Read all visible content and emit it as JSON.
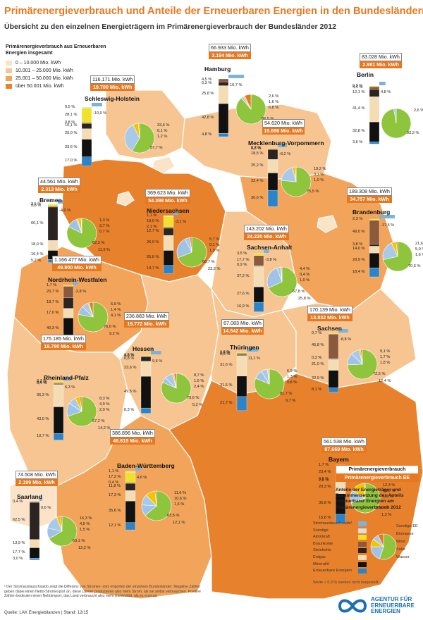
{
  "title": "Primärenergieverbrauch und Anteile der Erneuerbaren Energien in den Bundesländern",
  "subtitle": "Übersicht zu den einzelnen Energieträgern im Primärenergieverbrauch der Bundesländer 2012",
  "legend": {
    "title": "Primärenergieverbrauch aus Erneuerbaren Energien insgesamt",
    "classes": [
      {
        "label": "0 – 10.000 Mio. kWh",
        "color": "#fbe3c8"
      },
      {
        "label": "10.001 – 25.000 Mio. kWh",
        "color": "#f6c591"
      },
      {
        "label": "25.001 – 50.000 Mio. kWh",
        "color": "#f2a45a"
      },
      {
        "label": "über 50.001 Mio. kWh",
        "color": "#e8812c"
      }
    ]
  },
  "colors": {
    "stromaustausch": "#7ab3db",
    "sonstige": "#dedede",
    "atomkraft": "#f0e22c",
    "braunkohle": "#8b5a3c",
    "steinkohle": "#2b2420",
    "erdgas": "#f4dcb5",
    "mineraloel": "#111111",
    "ee": "#2a84c9",
    "pie_main": "#8fc43d",
    "pie_blue": "#a9c9e8",
    "pie_wind": "#9fc3e6",
    "pie_yellow": "#f5c400",
    "pie_orange": "#e8781f"
  },
  "states": [
    {
      "id": "sh",
      "name": "Schleswig-Holstein",
      "total": "116.171 Mio. kWh",
      "ee": "19.700 Mio. kWh",
      "left": [
        "0,5 %",
        "28,1 %",
        "0,8 %",
        "10,1 %",
        "20,0 %",
        "33,6 %",
        "17,0 %"
      ],
      "stromaus": "-10,0 %",
      "right": [
        "33,6 %",
        "6,1 %",
        "1,2 %"
      ],
      "main": "57,7 %"
    },
    {
      "id": "hh",
      "name": "Hamburg",
      "total": "66.933 Mio. kWh",
      "ee": "3.194 Mio. kWh",
      "left": [
        "4,5 %",
        "5,3 %",
        "25,8 %",
        "42,8 %",
        "4,8 %"
      ],
      "stromaus": "16,7 %",
      "right": [
        "2,6 %",
        "1,6 %",
        "6,8 %"
      ],
      "main": "86,5 %"
    },
    {
      "id": "be",
      "name": "Berlin",
      "total": "83.028 Mio. kWh",
      "ee": "2.981 Mio. kWh",
      "left": [
        "0,9 %",
        "4,4 %",
        "12,1 %",
        "41,4 %",
        "32,8 %",
        "3,6 %"
      ],
      "stromaus": "4,8 %",
      "right": [
        "2,6 %"
      ],
      "main": "93,2 %"
    },
    {
      "id": "mv",
      "name": "Mecklenburg-Vorpommern",
      "total": "54.620 Mio. kWh",
      "ee": "16.696 Mio. kWh",
      "left": [
        "0,7 %",
        "0,8 %",
        "18,5 %",
        "25,2 %",
        "32,4 %",
        "30,6 %"
      ],
      "stromaus": "-8,2 %",
      "right": [
        "19,2 %",
        "3,1 %",
        "1,0 %"
      ],
      "main": "75,5 %"
    },
    {
      "id": "hb",
      "name": "Bremen",
      "total": "44.561 Mio. kWh",
      "ee": "2.313 Mio. kWh",
      "left": [
        "3,5 %",
        "0,8 %",
        "60,1 %",
        "18,0 %",
        "16,4 %",
        "5,2 %"
      ],
      "stromaus": "-4,0 %",
      "right": [
        "1,3 %",
        "3,7 %",
        "0,7 %"
      ],
      "main": "82,3 %",
      "extra": "11,9 %"
    },
    {
      "id": "ni",
      "name": "Niedersachsen",
      "total": "369.623 Mio. kWh",
      "ee": "54.398 Mio. kWh",
      "left": [
        "1,1 %",
        "19,0 %",
        "2,1 %",
        "12,7 %",
        "26,9 %",
        "26,6 %",
        "14,7 %"
      ],
      "stromaus": "-3,1 %",
      "right": [
        "5,7 %",
        "0,1 %",
        "1,9 %"
      ],
      "main": "68,7 %",
      "extra": "23,2 %"
    },
    {
      "id": "bb",
      "name": "Brandenburg",
      "total": "189.308 Mio. kWh",
      "ee": "34.757 Mio. kWh",
      "left": [
        "2,3 %",
        "49,0 %",
        "3,8 %",
        "14,0 %",
        "29,9 %",
        "18,4 %"
      ],
      "stromaus": "-17,5 %",
      "right": [
        "21,6 %",
        "5,0 %",
        "1,6 %"
      ],
      "main": "70,6 %"
    },
    {
      "id": "st",
      "name": "Sachsen-Anhalt",
      "total": "143.202 Mio. kWh",
      "ee": "24.220 Mio. kWh",
      "left": [
        "3,5 %",
        "17,7 %",
        "0,9 %",
        "37,2 %",
        "27,6 %",
        "16,9 %"
      ],
      "stromaus": "-3,8 %",
      "right": [
        "4,4 %",
        "0,4 %",
        "1,0 %"
      ],
      "main": "67,8 %",
      "extra": "25,8 %"
    },
    {
      "id": "nw",
      "name": "Nordrhein-Westfalen",
      "total": "1.166.477 Mio. kWh",
      "ee": "49.800 Mio. kWh",
      "left": [
        "1,7 %",
        "20,7 %",
        "18,7 %",
        "17,0 %",
        "40,3 %",
        "4,3 %"
      ],
      "stromaus": "-2,8 %",
      "right": [
        "6,9 %",
        "1,4 %",
        "4,1 %"
      ],
      "main": "76,0 %",
      "extra": "9,2 %"
    },
    {
      "id": "sn",
      "name": "Sachsen",
      "total": "170.139 Mio. kWh",
      "ee": "13.832 Mio. kWh",
      "left": [
        "0,7 %",
        "45,8 %",
        "0,3 %",
        "21,0 %",
        "32,9 %",
        "8,1 %"
      ],
      "stromaus": "-8,8 %",
      "right": [
        "9,1 %",
        "1,7 %",
        "1,8 %"
      ],
      "main": "72,5 %",
      "extra": "12,4 %"
    },
    {
      "id": "he",
      "name": "Hessen",
      "total": "236.883 Mio. kWh",
      "ee": "19.772 Mio. kWh",
      "left": [
        "1,5 %",
        "0,6 %",
        "6,8 %",
        "23,6 %",
        "49,5 %",
        "8,3 %"
      ],
      "stromaus": "9,6 %",
      "right": [
        "8,7 %",
        "1,6 %",
        "2,4 %"
      ],
      "main": "79,6 %",
      "extra": "5,2 %"
    },
    {
      "id": "th",
      "name": "Thüringen",
      "total": "67.083 Mio. kWh",
      "ee": "14.542 Mio. kWh",
      "left": [
        "1,6 %",
        "2,2 %",
        "0,3 %",
        "31,6 %",
        "31,5 %",
        "21,7 %"
      ],
      "stromaus": "11,1 %",
      "right": [
        "6,9 %",
        "1,3 %",
        "0,8 %"
      ],
      "main": "81,7 %",
      "extra": "9,7 %"
    },
    {
      "id": "rp",
      "name": "Rheinland-Pfalz",
      "total": "175.185 Mio. kWh",
      "ee": "18.780 Mio. kWh",
      "left": [
        "2,7 %",
        "0,6 %",
        "0,4 %",
        "36,3 %",
        "43,0 %",
        "10,7 %"
      ],
      "stromaus": "6,3 %",
      "right": [
        "8,3 %",
        "4,9 %",
        "2,0 %"
      ],
      "main": "67,2 %",
      "extra": "14,2 %"
    },
    {
      "id": "bw",
      "name": "Baden-Württemberg",
      "total": "386.896 Mio. kWh",
      "ee": "46.815 Mio. kWh",
      "left": [
        "1,1 %",
        "17,2 %",
        "0,4 %",
        "11,8 %",
        "17,3 %",
        "35,6 %",
        "12,1 %"
      ],
      "stromaus": "4,6 %",
      "right": [
        "11,6 %",
        "10,6 %",
        "1,6 %"
      ],
      "main": "63,5 %",
      "extra": "12,1 %"
    },
    {
      "id": "by",
      "name": "Bayern",
      "total": "561.538 Mio. kWh",
      "ee": "87.669 Mio. kWh",
      "left": [
        "1,7 %",
        "23,4 %",
        "0,5 %",
        "2,8 %",
        "20,3 %",
        "35,8 %",
        "15,6 %"
      ],
      "stromaus": "",
      "right": [
        "12,3 %",
        "15,0 %",
        "1,1 %"
      ],
      "main": "67,8 %",
      "extra": "1,3 %"
    },
    {
      "id": "sl",
      "name": "Saarland",
      "total": "74.508 Mio. kWh",
      "ee": "2.199 Mio. kWh",
      "left": [
        "0,4 %",
        "62,5 %",
        "13,9 %",
        "17,7 %",
        "3,0 %"
      ],
      "stromaus": "0,6 %",
      "right": [
        "16,3 %",
        "4,5 %",
        "1,5 %"
      ],
      "main": "69,1 %",
      "extra": "12,2 %"
    }
  ],
  "info": {
    "box1": "Primärenergieverbrauch",
    "box2": "Primärenergieverbrauch EE",
    "desc": "Anteile der Energieträger und Zusammensetzung des Anteils Erneuerbarer Energien am Primärenergieverbrauch 2012"
  },
  "key": {
    "left": [
      "Stromaustauschsaldo¹",
      "Sonstige",
      "Atomkraft",
      "Braunkohle",
      "Steinkohle",
      "Erdgas",
      "Mineralöl",
      "Erneuerbare Energien"
    ],
    "right": [
      "Sonstige EE",
      "Biomasse",
      "Wind",
      "Solar",
      "Wasser"
    ]
  },
  "footnote": "¹ Der Stromaustauschsaldo zeigt die Differenz von Stromex- und -importen der einzelnen Bundesländer: Negative Zahlen geben dabei einen Netto-Stromexport an, diese Länder produzieren also mehr Strom, als sie selbst verbrauchen. Positive Zahlen bedeuten einen Nettoimport, das Land verbraucht also mehr Elektrizität, als es erzeugt.",
  "werte": "Werte < 0,3 % werden nicht dargestellt",
  "quelle": "Quelle: LAK Energiebilanzen  |  Stand: 12/15",
  "logo": [
    "AGENTUR FÜR",
    "ERNEUERBARE",
    "ENERGIEN"
  ]
}
